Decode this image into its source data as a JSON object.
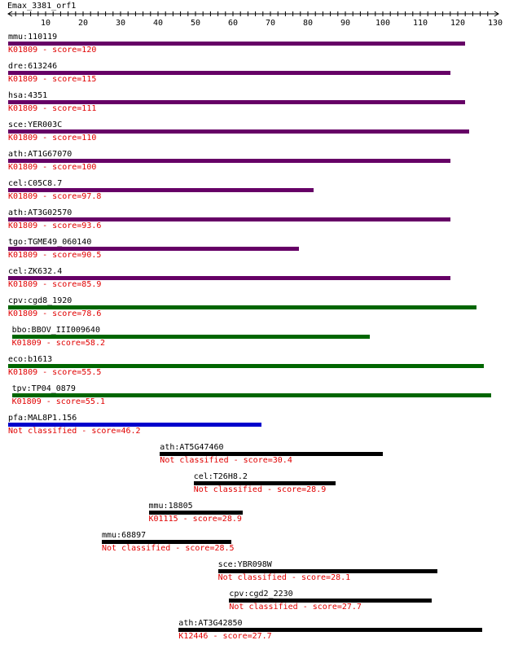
{
  "query": "Emax_3381_orf1",
  "axis": {
    "min": 0,
    "max": 130,
    "major_step": 10,
    "minor_step": 2,
    "tick_labels": [
      "10",
      "20",
      "30",
      "40",
      "50",
      "60",
      "70",
      "80",
      "90",
      "100",
      "110",
      "120",
      "130"
    ]
  },
  "colors": {
    "purple": "#660066",
    "green": "#006600",
    "blue": "#0000cc",
    "black": "#000000",
    "score_text": "#e00000"
  },
  "hits": [
    {
      "name": "mmu:110119",
      "classification": "K01809",
      "score": "120",
      "start": 0,
      "end": 122,
      "color": "#660066"
    },
    {
      "name": "dre:613246",
      "classification": "K01809",
      "score": "115",
      "start": 0,
      "end": 118,
      "color": "#660066"
    },
    {
      "name": "hsa:4351",
      "classification": "K01809",
      "score": "111",
      "start": 0,
      "end": 122,
      "color": "#660066"
    },
    {
      "name": "sce:YER003C",
      "classification": "K01809",
      "score": "110",
      "start": 0,
      "end": 123,
      "color": "#660066"
    },
    {
      "name": "ath:AT1G67070",
      "classification": "K01809",
      "score": "100",
      "start": 0,
      "end": 118,
      "color": "#660066"
    },
    {
      "name": "cel:C05C8.7",
      "classification": "K01809",
      "score": "97.8",
      "start": 0,
      "end": 81.5,
      "color": "#660066"
    },
    {
      "name": "ath:AT3G02570",
      "classification": "K01809",
      "score": "93.6",
      "start": 0,
      "end": 118,
      "color": "#660066"
    },
    {
      "name": "tgo:TGME49_060140",
      "classification": "K01809",
      "score": "90.5",
      "start": 0,
      "end": 77.5,
      "color": "#660066"
    },
    {
      "name": "cel:ZK632.4",
      "classification": "K01809",
      "score": "85.9",
      "start": 0,
      "end": 118,
      "color": "#660066"
    },
    {
      "name": "cpv:cgd8_1920",
      "classification": "K01809",
      "score": "78.6",
      "start": 0,
      "end": 125,
      "color": "#006600"
    },
    {
      "name": "bbo:BBOV_III009640",
      "classification": "K01809",
      "score": "58.2",
      "start": 1,
      "end": 96.5,
      "color": "#006600"
    },
    {
      "name": "eco:b1613",
      "classification": "K01809",
      "score": "55.5",
      "start": 0,
      "end": 127,
      "color": "#006600"
    },
    {
      "name": "tpv:TP04_0879",
      "classification": "K01809",
      "score": "55.1",
      "start": 1,
      "end": 129,
      "color": "#006600"
    },
    {
      "name": "pfa:MAL8P1.156",
      "classification": "Not classified",
      "score": "46.2",
      "start": 0,
      "end": 67.5,
      "color": "#0000cc"
    },
    {
      "name": "ath:AT5G47460",
      "classification": "Not classified",
      "score": "30.4",
      "start": 40.5,
      "end": 100,
      "color": "#000000"
    },
    {
      "name": "cel:T26H8.2",
      "classification": "Not classified",
      "score": "28.9",
      "start": 49.5,
      "end": 87.5,
      "color": "#000000"
    },
    {
      "name": "mmu:18805",
      "classification": "K01115",
      "score": "28.9",
      "start": 37.5,
      "end": 62.5,
      "color": "#000000"
    },
    {
      "name": "mmu:68897",
      "classification": "Not classified",
      "score": "28.5",
      "start": 25,
      "end": 59.5,
      "color": "#000000"
    },
    {
      "name": "sce:YBR098W",
      "classification": "Not classified",
      "score": "28.1",
      "start": 56,
      "end": 114.5,
      "color": "#000000"
    },
    {
      "name": "cpv:cgd2_2230",
      "classification": "Not classified",
      "score": "27.7",
      "start": 59,
      "end": 113,
      "color": "#000000"
    },
    {
      "name": "ath:AT3G42850",
      "classification": "K12446",
      "score": "27.7",
      "start": 45.5,
      "end": 126.5,
      "color": "#000000"
    }
  ]
}
